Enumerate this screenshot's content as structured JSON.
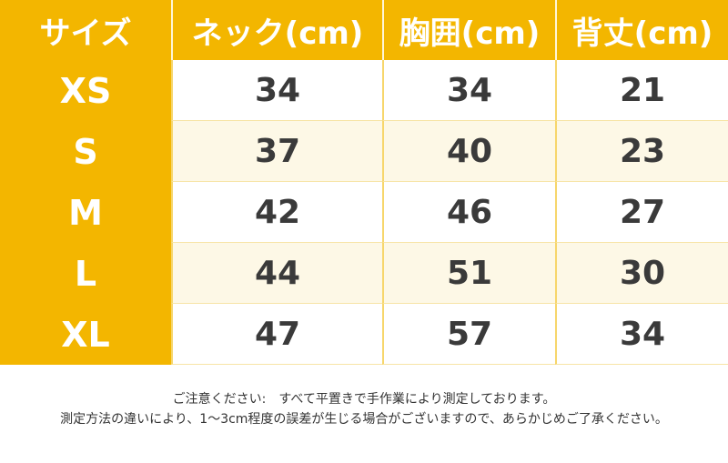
{
  "table": {
    "headers": [
      "サイズ",
      "ネック(cm)",
      "胸囲(cm)",
      "背丈(cm)"
    ],
    "rows": [
      {
        "size": "XS",
        "neck": "34",
        "chest": "34",
        "length": "21"
      },
      {
        "size": "S",
        "neck": "37",
        "chest": "40",
        "length": "23"
      },
      {
        "size": "M",
        "neck": "42",
        "chest": "46",
        "length": "27"
      },
      {
        "size": "L",
        "neck": "44",
        "chest": "51",
        "length": "30"
      },
      {
        "size": "XL",
        "neck": "47",
        "chest": "57",
        "length": "34"
      }
    ]
  },
  "notes": {
    "line1": "ご注意ください:　すべて平置きで手作業により測定しております。",
    "line2": "測定方法の違いにより、1～3cm程度の誤差が生じる場合がございますので、あらかじめご了承ください。"
  },
  "colors": {
    "header_bg": "#f3b600",
    "header_text": "#ffffff",
    "row_alt_bg": "#fdf8e6",
    "cell_text": "#3a3a3a"
  }
}
